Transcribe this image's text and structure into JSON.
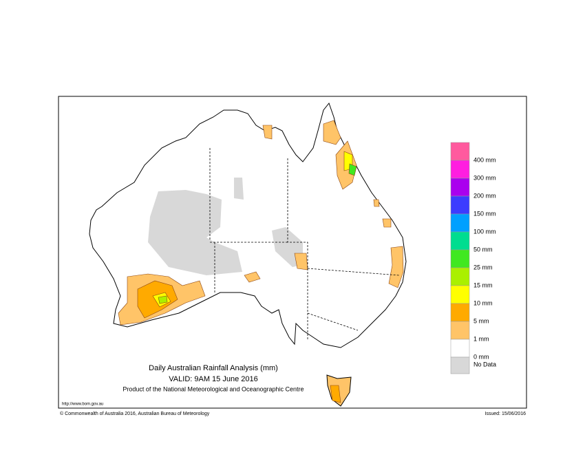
{
  "header": {
    "title": "Daily Australian Rainfall Analysis (mm)",
    "valid": "VALID: 9AM 15 June 2016",
    "product": "Product of the National Meteorological and Oceanographic Centre"
  },
  "legend": {
    "boxes": [
      "#ff5a9e",
      "#ff1ee0",
      "#aa00ee",
      "#3c3cff",
      "#00a0ff",
      "#00dd90",
      "#40e820",
      "#aaf000",
      "#ffff00",
      "#ffaa00",
      "#ffc468",
      "#ffffff"
    ],
    "labels": [
      "400 mm",
      "300 mm",
      "200 mm",
      "150 mm",
      "100 mm",
      "50 mm",
      "25 mm",
      "15 mm",
      "10 mm",
      "5 mm",
      "1 mm",
      "0 mm"
    ],
    "no_data": {
      "label": "No Data",
      "color": "#d8d8d8"
    }
  },
  "footer": {
    "url": "http://www.bom.gov.au",
    "copyright": "© Commonwealth of Australia 2016, Australian Bureau of Meteorology",
    "issued": "Issued: 15/06/2016"
  }
}
